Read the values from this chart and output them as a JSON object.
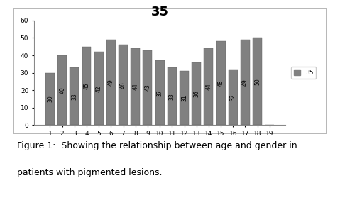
{
  "title": "35",
  "categories": [
    "1",
    "2",
    "3",
    "4",
    "5",
    "6",
    "7",
    "8",
    "9",
    "10",
    "11",
    "12",
    "13",
    "14",
    "15",
    "16",
    "17",
    "18",
    "19"
  ],
  "values": [
    30,
    40,
    33,
    45,
    42,
    49,
    46,
    44,
    43,
    37,
    33,
    31,
    36,
    44,
    48,
    32,
    49,
    50,
    0
  ],
  "bar_color": "#808080",
  "legend_label": "35",
  "legend_color": "#808080",
  "ylim": [
    0,
    60
  ],
  "yticks": [
    0,
    10,
    20,
    30,
    40,
    50,
    60
  ],
  "title_fontsize": 13,
  "bar_label_fontsize": 5.5,
  "caption_line1": "Figure 1:  Showing the relationship between age and gender in",
  "caption_line2": "patients with pigmented lesions.",
  "caption_fontsize": 9,
  "outer_bg": "#ffffff",
  "chart_bg": "#ffffff",
  "chart_border": "#aaaaaa"
}
